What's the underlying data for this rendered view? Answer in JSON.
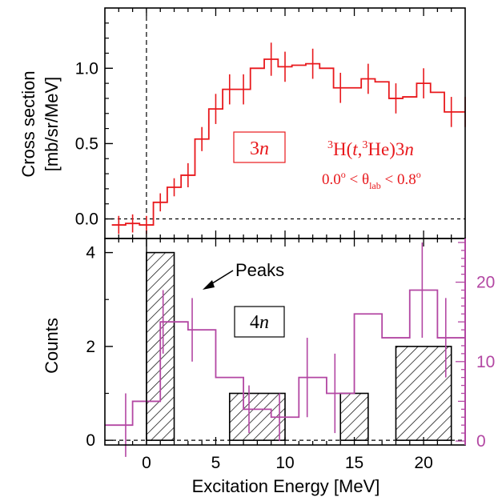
{
  "colors": {
    "top_series": "#e8181c",
    "pink_series": "#b347a3",
    "axes": "#000000"
  },
  "chart_data": [
    {
      "type": "line",
      "panel": "top",
      "xlabel": "",
      "ylabel_line1": "Cross section",
      "ylabel_line2": "[mb/sr/MeV]",
      "xlim": [
        -3,
        23
      ],
      "ylim": [
        -0.13,
        1.4
      ],
      "yticks": [
        0.0,
        0.5,
        1.0
      ],
      "ytick_labels": [
        "0.0",
        "0.5",
        "1.0"
      ],
      "box_label": "3",
      "box_label_italic": "n",
      "reaction": {
        "pre": "3",
        "H": "H(",
        "t": "t",
        "comma": ",",
        "sup2": "3",
        "He": "He)3",
        "n": "n"
      },
      "angle": {
        "left": "0.0",
        "o1": "o",
        "lt1": " < θ",
        "lab": "lab",
        "lt2": " < 0.8",
        "o2": "o"
      },
      "series": [
        {
          "bin_edges": [
            -2.5,
            -1.5,
            -0.5,
            0.5,
            1.5,
            2.5,
            3.5,
            4.5,
            5.5,
            6.5,
            7.5,
            8.5,
            9.5,
            10.5,
            11.5,
            12.5,
            13.5,
            14.5,
            15.5,
            16.5,
            17.5,
            18.5,
            19.5,
            20.5,
            21.5,
            22.5,
            23.5
          ],
          "values": [
            -0.04,
            -0.03,
            -0.04,
            0.11,
            0.21,
            0.29,
            0.53,
            0.73,
            0.86,
            0.86,
            1.0,
            1.06,
            1.01,
            1.02,
            1.03,
            1.0,
            0.87,
            0.87,
            0.93,
            0.91,
            0.8,
            0.81,
            0.9,
            0.84,
            0.71,
            0.71
          ],
          "errors": [
            0.06,
            0.06,
            0.06,
            0.06,
            0.06,
            0.08,
            0.08,
            0.1,
            0.1,
            0.1,
            0.1,
            0.11,
            0.1,
            0.11,
            0.1,
            0.11,
            0.1,
            0.1,
            0.1,
            0.1,
            0.1,
            0.1,
            0.1,
            0.1,
            0.1,
            0.1
          ],
          "error_bars_shown": [
            true,
            true,
            true,
            true,
            true,
            true,
            true,
            true,
            true,
            true,
            false,
            true,
            true,
            false,
            true,
            false,
            true,
            false,
            true,
            false,
            true,
            false,
            true,
            false,
            true,
            true
          ]
        }
      ]
    },
    {
      "type": "bar",
      "panel": "bottom",
      "xlabel": "Excitation Energy [MeV]",
      "ylabel": "Counts",
      "xlim": [
        -3,
        23
      ],
      "ylim": [
        -0.1,
        4.3
      ],
      "xticks": [
        0,
        5,
        10,
        15,
        20
      ],
      "xtick_labels": [
        "0",
        "5",
        "10",
        "15",
        "20"
      ],
      "yticks": [
        0,
        2,
        4
      ],
      "ytick_labels": [
        "0",
        "2",
        "4"
      ],
      "right_yticks": [
        0,
        10,
        20
      ],
      "right_ytick_labels": [
        "0",
        "10",
        "20"
      ],
      "right_ylim": [
        -0.5,
        25.5
      ],
      "box_label": "4",
      "box_label_italic": "n",
      "annotation": "Peaks",
      "hatched_bars": [
        {
          "x0": 0,
          "x1": 2,
          "count": 4
        },
        {
          "x0": 2,
          "x1": 6,
          "count": 0
        },
        {
          "x0": 6,
          "x1": 10,
          "count": 1
        },
        {
          "x0": 10,
          "x1": 14,
          "count": 0
        },
        {
          "x0": 14,
          "x1": 16,
          "count": 1
        },
        {
          "x0": 16,
          "x1": 18,
          "count": 0
        },
        {
          "x0": 18,
          "x1": 22,
          "count": 2
        }
      ],
      "pink_series": {
        "bin_edges": [
          -3,
          -2,
          -1,
          0,
          1,
          2,
          3,
          4,
          5,
          6,
          7,
          8,
          9,
          10,
          11,
          12,
          13,
          14,
          15,
          16,
          17,
          18,
          19,
          20,
          21,
          22,
          23
        ],
        "values": [
          2,
          2,
          5,
          5,
          15,
          15,
          14,
          14,
          8,
          8,
          4,
          4,
          3,
          3,
          8,
          8,
          6,
          6,
          16,
          16,
          13,
          13,
          19,
          19,
          13,
          13
        ],
        "errors": [
          0,
          4,
          0,
          0,
          4,
          0,
          4,
          0,
          0,
          0,
          3,
          0,
          3,
          0,
          0,
          5,
          0,
          5,
          0,
          0,
          0,
          0,
          6,
          0,
          5,
          0
        ],
        "error_center_x": [
          null,
          -1.5,
          null,
          null,
          1.2,
          null,
          3.3,
          null,
          null,
          null,
          7.4,
          null,
          9.6,
          null,
          null,
          11.6,
          null,
          13.6,
          null,
          null,
          null,
          null,
          19.9,
          null,
          21.6,
          null
        ]
      }
    }
  ]
}
